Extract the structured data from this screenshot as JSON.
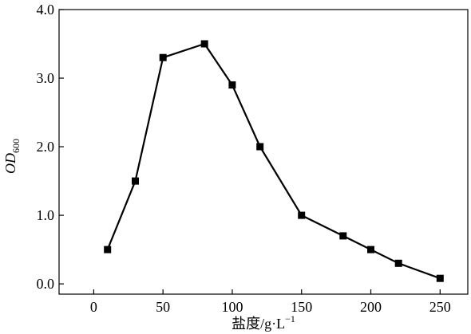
{
  "chart_data": {
    "type": "line",
    "xlabel": "盐度/g·L",
    "xlabel_sup": "−1",
    "ylabel": "OD",
    "ylabel_sub": "600",
    "xlim": [
      -25,
      270
    ],
    "ylim": [
      -0.15,
      4.0
    ],
    "x_ticks": [
      0,
      50,
      100,
      150,
      200,
      250
    ],
    "x_tick_labels": [
      "0",
      "50",
      "100",
      "150",
      "200",
      "250"
    ],
    "y_ticks": [
      0,
      1,
      2,
      3,
      4
    ],
    "y_tick_labels": [
      "0.0",
      "1.0",
      "2.0",
      "3.0",
      "4.0"
    ],
    "grid": false,
    "legend": "none",
    "series": [
      {
        "marker": "square",
        "color": "#000000",
        "x": [
          10,
          30,
          50,
          80,
          100,
          120,
          150,
          180,
          200,
          220,
          250
        ],
        "y": [
          0.5,
          1.5,
          3.3,
          3.5,
          2.9,
          2.0,
          1.0,
          0.7,
          0.5,
          0.3,
          0.08
        ]
      }
    ]
  }
}
